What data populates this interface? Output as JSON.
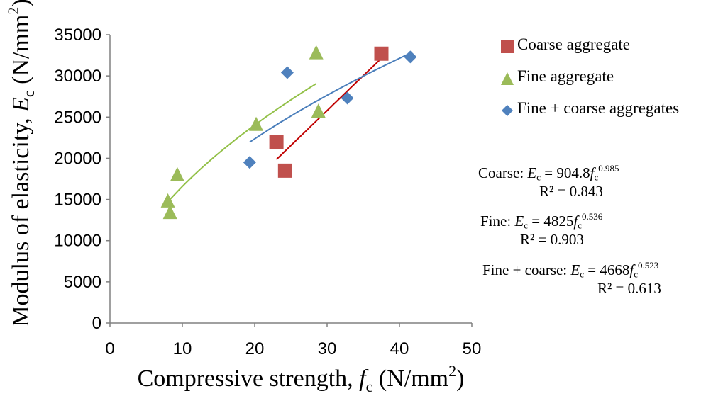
{
  "chart_data": {
    "type": "scatter",
    "xlabel": {
      "prefix": "Compressive strength, ",
      "var": "f",
      "sub": "c",
      "unit": " (N/mm",
      "sup": "2",
      "close": ")"
    },
    "ylabel": {
      "prefix": "Modulus of elasticity, ",
      "var": "E",
      "sub": "c",
      "unit": " (N/mm",
      "sup": "2",
      "close": ")"
    },
    "xlim": [
      0,
      50
    ],
    "ylim": [
      0,
      35000
    ],
    "x_ticks": [
      0,
      10,
      20,
      30,
      40,
      50
    ],
    "y_ticks": [
      0,
      5000,
      10000,
      15000,
      20000,
      25000,
      30000,
      35000
    ],
    "grid": false,
    "legend_position": "right",
    "series": [
      {
        "name": "Coarse aggregate",
        "marker": "square",
        "color": "#c0504d",
        "line_color": "#c00000",
        "points": [
          [
            23,
            22000
          ],
          [
            24.2,
            18500
          ],
          [
            37.5,
            32700
          ]
        ],
        "trend": {
          "a": 904.8,
          "b": 0.985,
          "x_range": [
            23,
            37.3
          ]
        }
      },
      {
        "name": "Fine aggregate",
        "marker": "triangle",
        "color": "#9bbb59",
        "line_color": "#92c047",
        "points": [
          [
            8,
            14800
          ],
          [
            8.3,
            13400
          ],
          [
            9.3,
            18000
          ],
          [
            20.2,
            24100
          ],
          [
            28.5,
            32800
          ],
          [
            28.8,
            25700
          ]
        ],
        "trend": {
          "a": 4825,
          "b": 0.536,
          "x_range": [
            8,
            28.5
          ]
        }
      },
      {
        "name": "Fine + coarse aggregates",
        "marker": "diamond",
        "color": "#4f81bd",
        "line_color": "#4a7ebb",
        "points": [
          [
            19.3,
            19500
          ],
          [
            24.5,
            30400
          ],
          [
            32.8,
            27300
          ],
          [
            41.5,
            32300
          ]
        ],
        "trend": {
          "a": 4668,
          "b": 0.523,
          "x_range": [
            19.3,
            41.5
          ]
        }
      }
    ],
    "annotations": {
      "coarse": {
        "label": "Coarse: ",
        "var": "E",
        "sub": "c",
        "eq": " = 904.8",
        "base": "f",
        "base_sub": "c",
        "exp": "0.985",
        "r2": "R² = 0.843"
      },
      "fine": {
        "label": "Fine: ",
        "var": "E",
        "sub": "c",
        "eq": " = 4825",
        "base": "f",
        "base_sub": "c",
        "exp": "0.536",
        "r2": "R² = 0.903"
      },
      "fine_coarse": {
        "label": "Fine + coarse: ",
        "var": "E",
        "sub": "c",
        "eq": " = 4668",
        "base": "f",
        "base_sub": "c",
        "exp": "0.523",
        "r2": "R² = 0.613"
      }
    }
  }
}
